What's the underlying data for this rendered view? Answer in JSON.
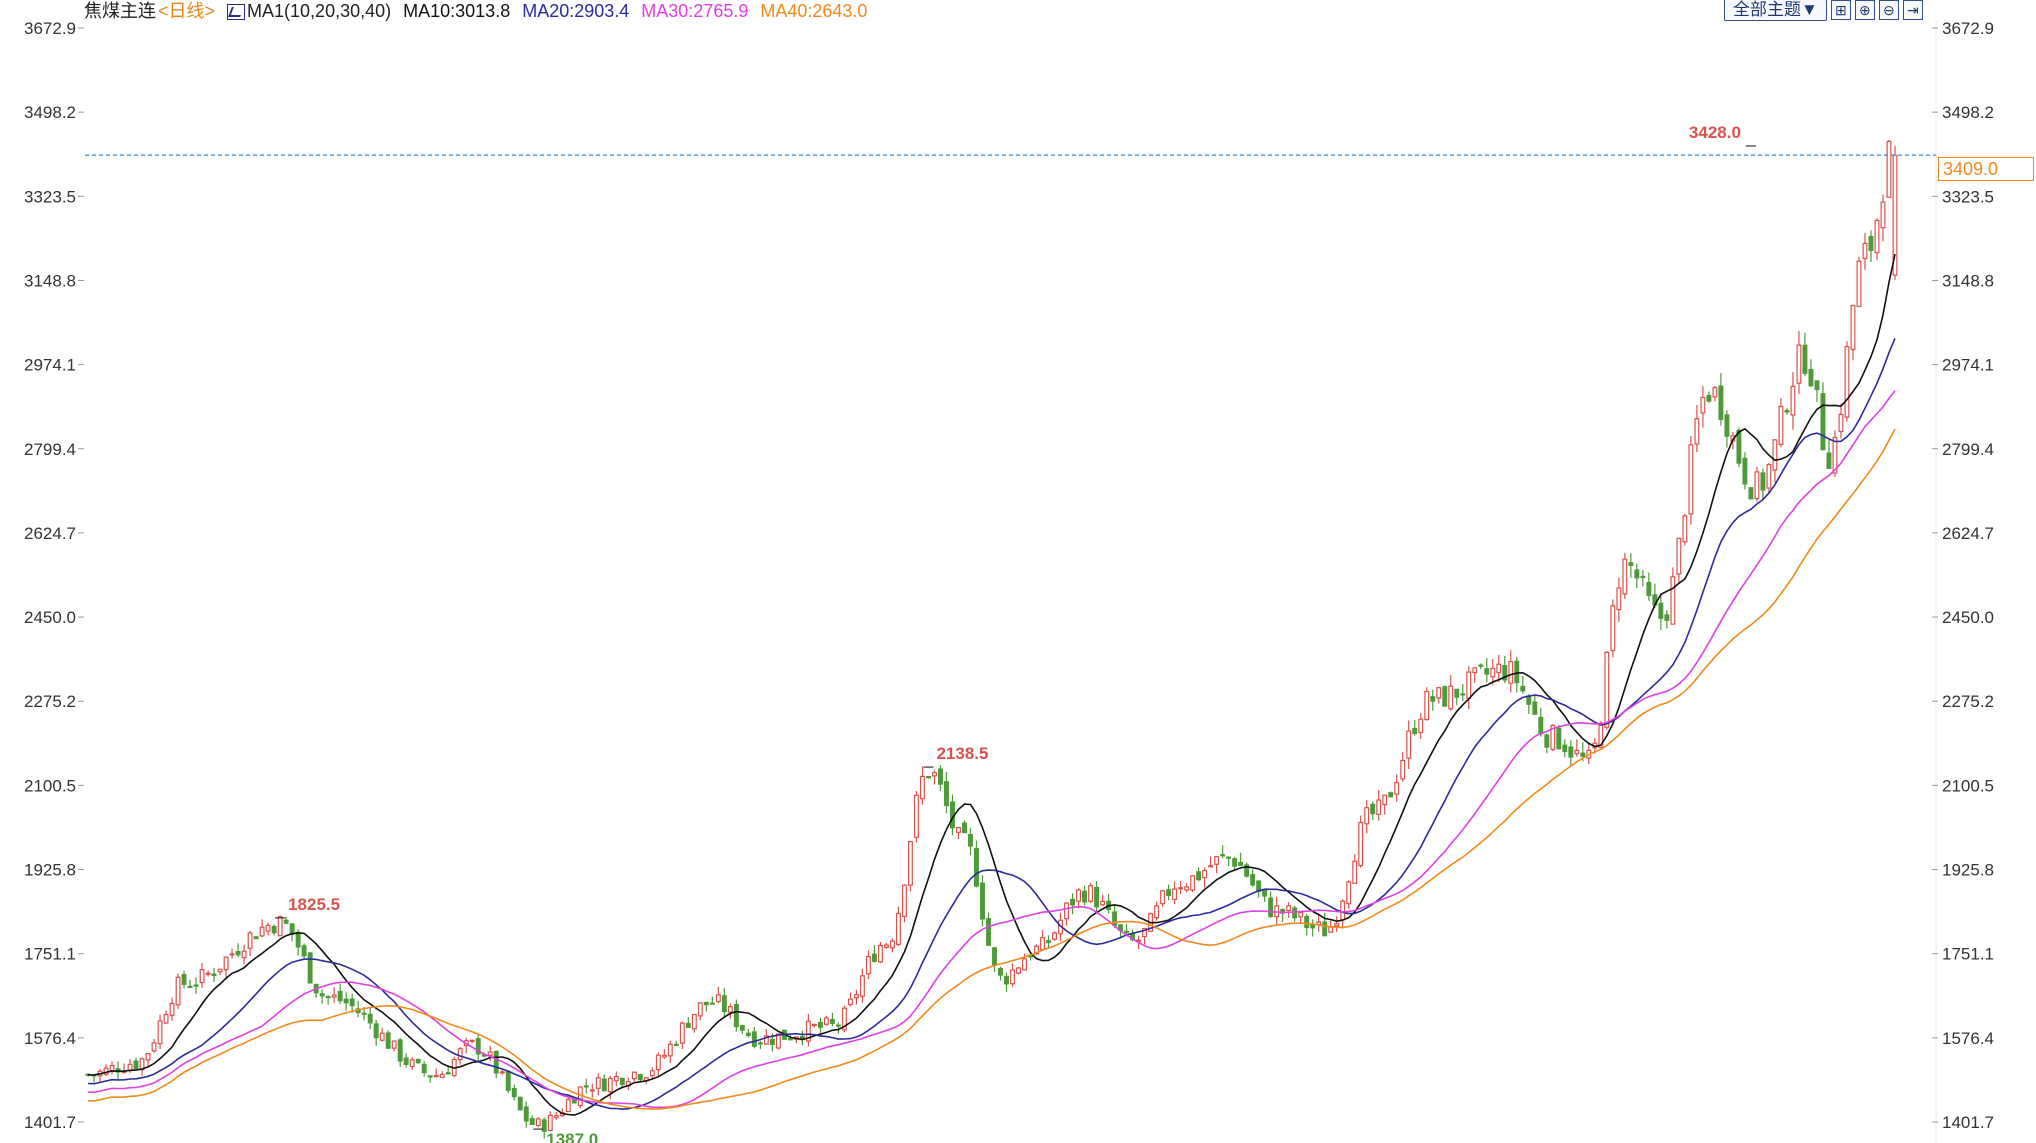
{
  "legend": {
    "title": "焦煤主连",
    "period": "<日线>",
    "ma_label": "MA1(10,20,30,40)",
    "ma10": "MA10:3013.8",
    "ma20": "MA20:2903.4",
    "ma30": "MA30:2765.9",
    "ma40": "MA40:2643.0"
  },
  "toolbar": {
    "theme_label": "全部主题▼",
    "tools": [
      "grid-icon",
      "zoom-in-icon",
      "zoom-out-icon",
      "move-right-icon"
    ]
  },
  "price_box": "3409.0",
  "colors": {
    "up": "#d9534f",
    "down": "#4e9a3a",
    "ma10": "#111111",
    "ma20": "#2b2b9a",
    "ma30": "#e040e0",
    "ma40": "#f08a1c",
    "current": "#2a8ccf"
  },
  "chart_data": {
    "type": "candlestick",
    "title": "焦煤主连",
    "ylim": [
      1401.7,
      3672.9
    ],
    "y_ticks": [
      "3672.9",
      "3498.2",
      "3323.5",
      "3148.8",
      "2974.1",
      "2799.4",
      "2624.7",
      "2450.0",
      "2275.2",
      "2100.5",
      "1925.8",
      "1751.1",
      "1576.4",
      "1401.7"
    ],
    "annotations": [
      {
        "label": "1825.5",
        "index": 32,
        "value": 1825.5
      },
      {
        "label": "2138.5",
        "index": 140,
        "value": 2138.5
      },
      {
        "label": "1387.0",
        "index": 75,
        "value": 1387.0
      },
      {
        "label": "3428.0",
        "index": 277,
        "value": 3428.0
      }
    ],
    "current_price": 3409.0,
    "ma_current": {
      "MA10": 3013.8,
      "MA20": 2903.4,
      "MA30": 2765.9,
      "MA40": 2643.0
    },
    "pivots": [
      [
        0,
        1500
      ],
      [
        8,
        1525
      ],
      [
        16,
        1690
      ],
      [
        32,
        1815
      ],
      [
        40,
        1660
      ],
      [
        58,
        1500
      ],
      [
        64,
        1560
      ],
      [
        75,
        1395
      ],
      [
        84,
        1480
      ],
      [
        92,
        1505
      ],
      [
        104,
        1650
      ],
      [
        112,
        1575
      ],
      [
        124,
        1600
      ],
      [
        133,
        1775
      ],
      [
        140,
        2130
      ],
      [
        146,
        1980
      ],
      [
        152,
        1700
      ],
      [
        158,
        1760
      ],
      [
        166,
        1880
      ],
      [
        174,
        1775
      ],
      [
        182,
        1900
      ],
      [
        190,
        1950
      ],
      [
        198,
        1840
      ],
      [
        206,
        1800
      ],
      [
        214,
        2040
      ],
      [
        224,
        2280
      ],
      [
        236,
        2340
      ],
      [
        244,
        2200
      ],
      [
        250,
        2150
      ],
      [
        256,
        2560
      ],
      [
        262,
        2450
      ],
      [
        270,
        2920
      ],
      [
        278,
        2720
      ],
      [
        286,
        2990
      ],
      [
        290,
        2790
      ],
      [
        296,
        3200
      ],
      [
        301,
        3430
      ]
    ]
  }
}
